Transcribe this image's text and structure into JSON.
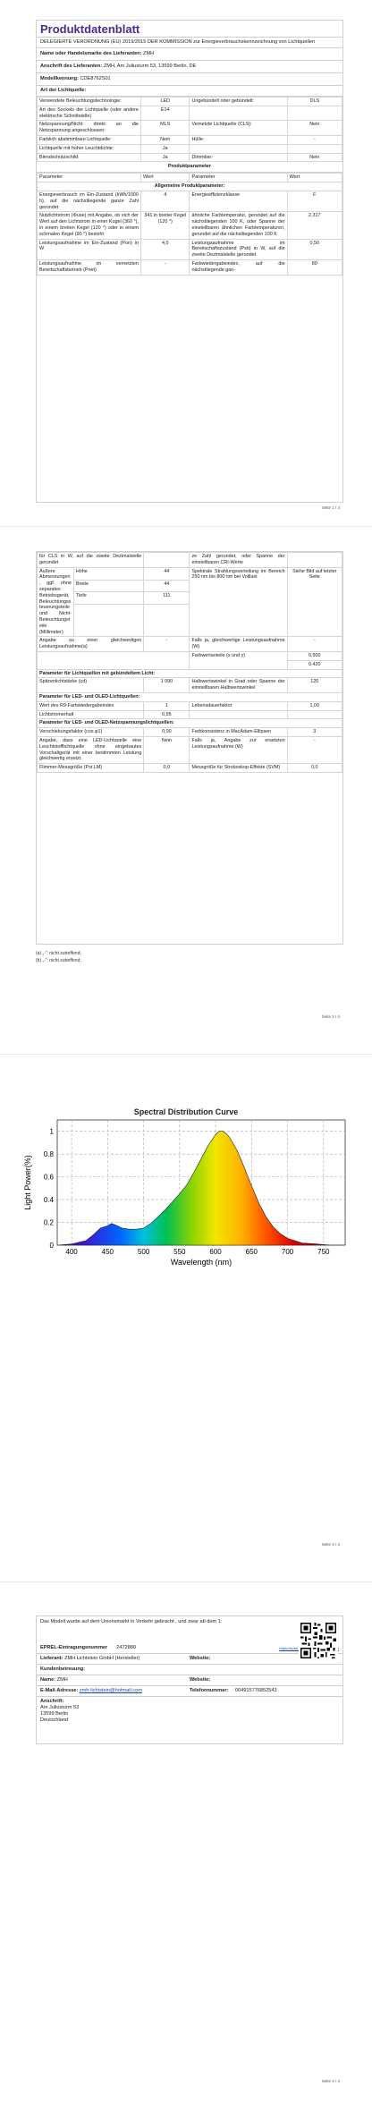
{
  "page1": {
    "title": "Produktdatenblatt",
    "regulation": "DELEGIERTE VERORDNUNG (EU) 2019/2015 DER KOMMISSION zur Energieverbrauchskennzeichnung von Lichtquellen",
    "brand_label": "Name oder Handelsmarke des Lieferanten:",
    "brand_value": "ZMH",
    "address_label": "Anschrift des Lieferanten:",
    "address_value": "ZMH, Am Juliusturm 53, 13599 Berlin, DE",
    "model_label": "Modellkennung:",
    "model_value": "CDE8762S01",
    "type_section": "Art der Lichtquelle:",
    "type_rows": [
      [
        "Verwendete Beleuchtungstechnologie:",
        "LED",
        "Ungebündelt oder gebündelt:",
        "DLS"
      ],
      [
        "Art des Sockels der Lichtquelle (oder andere elektrische Schnittstelle)",
        "E14",
        "",
        ""
      ],
      [
        "Netzspannung/Nicht direkt an die Netzspannung angeschlossen:",
        "MLS",
        "Vernetzte Lichtquelle (CLS):",
        "Nein"
      ],
      [
        "Farblich abstimmbare Lichtquelle:",
        "Nein",
        "Hülle:",
        "-"
      ],
      [
        "Lichtquelle mit hoher Leuchtdichte:",
        "Ja",
        "",
        ""
      ],
      [
        "Blendschutzschild:",
        "Ja",
        "Dimmbar:",
        "Nein"
      ]
    ],
    "param_section": "Produktparameter",
    "param_header": [
      "Parameter",
      "Wert",
      "Parameter",
      "Wert"
    ],
    "general_section": "Allgemeine Produktparameter:",
    "general_rows": [
      [
        "Energieverbrauch im Ein-Zustand (kWh/1000 h), auf die nächstliegende ganze Zahl gerundet",
        "4",
        "Energieeffizienzklasse",
        "F"
      ],
      [
        "Nutzlichtstrom (Φuse) mit Angabe, ob sich der Wert auf den Lichtstrom in einer Kugel (360 °), in einem breiten Kegel (120 °) oder in einem schmalen Kegel (90 °) bezieht",
        "341 in breiter Kegel (120 °)",
        "ähnliche Farbtemperatur, gerundet auf die nächstliegenden 100 K, oder Spanne der einstellbaren ähnlichen Farbtemperaturen, gerundet auf die nächstliegenden 100 K",
        "2 317"
      ],
      [
        "Leistungsaufnahme im Ein-Zustand (Pon) in W",
        "4,0",
        "Leistungsaufnahme im Bereitschaftszustand (Psb) in W, auf die zweite Dezimalstelle gerundet",
        "0,50"
      ],
      [
        "Leistungsaufnahme im vernetzten Bereitschaftsbetrieb (Pnet)",
        "-",
        "Farbwiedergabeindex, auf die nächstliegende gan-",
        "80"
      ]
    ],
    "page_number": "Seite 1 / 4"
  },
  "page2": {
    "cont_rows": [
      [
        "für CLS in W, auf die zweite Dezimalstelle gerundet",
        "",
        "ze Zahl gerundet, oder Spanne der einstellbaren CRI-Werte",
        ""
      ]
    ],
    "dim_label": "Äußere Abmessungen, ggf. ohne separates Betriebsgerät, Beleuchtungssteuerungsteile und Nicht-Beleuchtungsteile (Millimeter)",
    "dim_rows": [
      [
        "Höhe",
        "44"
      ],
      [
        "Breite",
        "44"
      ],
      [
        "Tiefe",
        "111"
      ]
    ],
    "spectral_label": "Spektrale Strahlungsverteilung im Bereich 250 nm bis 800 nm bei Volllast",
    "spectral_value": "Siehe Bild auf letzter Seite",
    "equiv_label": "Angabe zu einer gleichwertigen Leistungsaufnahme(a)",
    "equiv_value": "-",
    "equiv_right": "Falls ja, gleichwertige Leistungsaufnahme (W)",
    "equiv_right_value": "-",
    "chroma_label": "Farbwertanteile (x und y)",
    "chroma_x": "0,500",
    "chroma_y": "0,420",
    "directional_section": "Parameter für Lichtquellen mit gebündeltem Licht:",
    "directional_row": [
      "Spitzenlichtstärke (cd)",
      "1 090",
      "Halbwertswinkel in Grad oder Spanne der einstellbaren Halbwertswinkel",
      "120"
    ],
    "led_section": "Parameter für LED- und OLED-Lichtquellen:",
    "led_rows": [
      [
        "Wert des R9-Farbwiedergabeindex",
        "1",
        "Lebensdauerfaktor",
        "1,00"
      ],
      [
        "Lichtstromerhalt",
        "0,95",
        "",
        ""
      ]
    ],
    "mains_section": "Parameter für LED- und OLED-Netzspannungslichtquellen:",
    "mains_rows": [
      [
        "Verschiebungsfaktor (cos φ1)",
        "0,00",
        "Farbkonsistenz in MacAdam-Ellipsen",
        "3"
      ],
      [
        "Angabe, dass eine LED-Lichtquelle eine Leuchtstofflichtquelle ohne eingebautes Vorschaltgerät mit einer bestimmten Leistung gleichwertig ersetzt.",
        "Nein",
        "Falls ja, Angabe zur ersetzten Leistungsaufnahme (W)",
        "-"
      ],
      [
        "Flimmer-Messgröße (Pst LM)",
        "0,0",
        "Messgröße für Stroboskop-Effekte (SVM)",
        "0,0"
      ]
    ],
    "note_a": "(a) „-“: nicht zutreffend;",
    "note_b": "(b) „-“: nicht zutreffend;",
    "page_number": "Seite 2 / 4"
  },
  "page3": {
    "chart_title": "Spectral Distribution Curve",
    "page_number": "Seite 3 / 4"
  },
  "chart_data": {
    "type": "area",
    "title": "Spectral Distribution Curve",
    "xlabel": "Wavelength (nm)",
    "ylabel": "Light Power(%)",
    "xlim": [
      380,
      780
    ],
    "ylim": [
      0,
      1.1
    ],
    "x_ticks": [
      400,
      450,
      500,
      550,
      600,
      650,
      700,
      750
    ],
    "y_ticks": [
      0,
      0.2,
      0.4,
      0.6,
      0.8,
      1
    ],
    "grid": true,
    "series": [
      {
        "x": [
          380,
          400,
          420,
          430,
          440,
          450,
          455,
          460,
          470,
          480,
          490,
          500,
          510,
          520,
          530,
          540,
          550,
          560,
          570,
          580,
          590,
          600,
          605,
          610,
          615,
          620,
          630,
          640,
          650,
          660,
          670,
          680,
          690,
          700,
          720,
          740,
          760,
          780
        ],
        "y": [
          0.0,
          0.01,
          0.04,
          0.09,
          0.15,
          0.17,
          0.19,
          0.18,
          0.15,
          0.14,
          0.14,
          0.15,
          0.19,
          0.25,
          0.31,
          0.38,
          0.45,
          0.53,
          0.64,
          0.76,
          0.88,
          0.97,
          1.0,
          1.0,
          0.98,
          0.94,
          0.83,
          0.68,
          0.52,
          0.37,
          0.25,
          0.16,
          0.1,
          0.06,
          0.02,
          0.01,
          0.0,
          0.0
        ]
      }
    ]
  },
  "page4": {
    "intro": "Das Modell wurde auf dem Unionsmarkt in Verkehr gebracht , und zwar ab dem 1:",
    "eprel_label": "EPREL-Eintragungsnummer",
    "eprel_value": "2472880",
    "eprel_link": "https://eprel.ec.europa.eu/qr/2472880",
    "supplier_label": "Lieferant:",
    "supplier_value": "ZMH Lichtstein GmbH (Hersteller)",
    "website_label": "Website:",
    "service_label": "Kundenbetreuung:",
    "name_label": "Name:",
    "name_value": "ZMH",
    "website2_label": "Website:",
    "email_label": "E-Mail-Adresse:",
    "email_value": "zmh-lichtstein@hotmail.com",
    "phone_label": "Telefonnummer:",
    "phone_value": "004915776852543",
    "addr_label": "Anschrift:",
    "addr_lines": [
      "Am Juliusturm 53",
      "13599 Berlin",
      "Deutschland"
    ],
    "page_number": "Seite 4 / 4"
  }
}
